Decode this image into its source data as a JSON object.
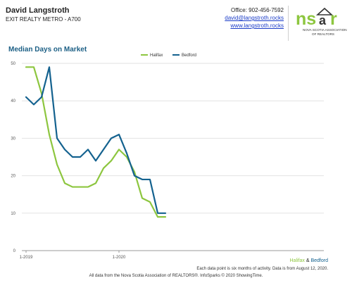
{
  "header": {
    "agent_name": "David Langstroth",
    "office": "EXIT REALTY METRO - A700",
    "phone": "Office: 902-456-7592",
    "email": "david@langstroth.rocks",
    "website": "www.langstroth.rocks"
  },
  "logo": {
    "mark": "nsar",
    "line1": "NOVA SCOTIA ASSOCIATION",
    "line2": "OF REALTORS",
    "colors": {
      "green": "#8dc63f",
      "dark": "#333333"
    }
  },
  "chart_data": {
    "type": "line",
    "title": "Median Days on Market",
    "x_tick_labels": [
      "1-2019",
      "1-2020"
    ],
    "y_ticks": [
      0,
      10,
      20,
      30,
      40,
      50
    ],
    "ylim": [
      0,
      50
    ],
    "grid": true,
    "legend_position": "top-center",
    "series": [
      {
        "name": "Halifax",
        "color": "#8dc63f",
        "values": [
          49,
          49,
          42,
          31,
          23,
          18,
          17,
          17,
          17,
          18,
          22,
          24,
          27,
          25,
          21,
          14,
          13,
          9,
          9
        ]
      },
      {
        "name": "Bedford",
        "color": "#14628f",
        "values": [
          41,
          39,
          41,
          49,
          30,
          27,
          25,
          25,
          27,
          24,
          27,
          30,
          31,
          26,
          20,
          19,
          19,
          10,
          10
        ]
      }
    ]
  },
  "footer": {
    "legend_a": "Halifax",
    "legend_amp": " & ",
    "legend_b": "Bedford",
    "note": "Each data point is six months of activity. Data is from August 12, 2020.",
    "source": "All data from the Nova Scotia Association of REALTORS®. InfoSparks © 2020 ShowingTime."
  }
}
